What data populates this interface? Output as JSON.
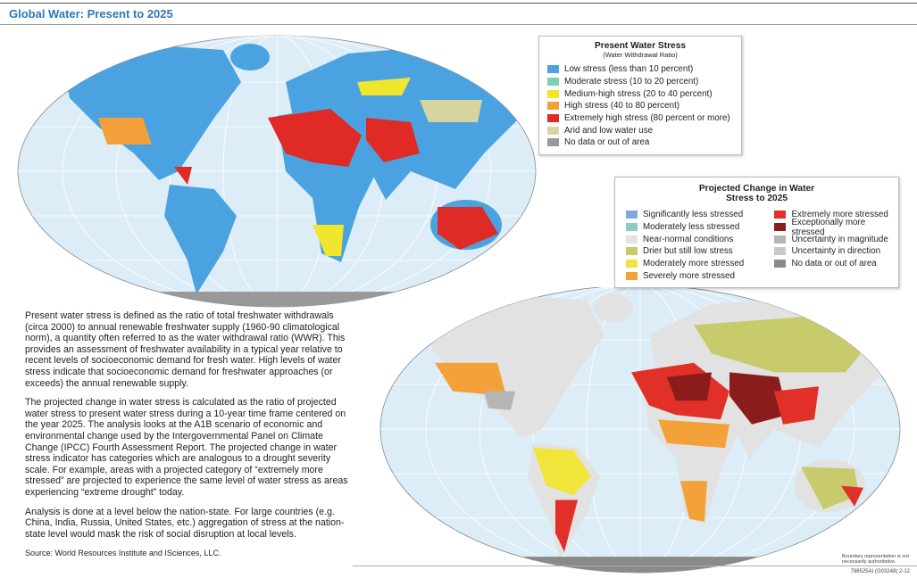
{
  "header": {
    "title": "Global Water: Present to 2025"
  },
  "legend_present": {
    "title": "Present Water Stress",
    "subtitle": "(Water Withdrawal Ratio)",
    "items": [
      {
        "label": "Low stress (less than 10 percent)",
        "color": "#4aa3e0"
      },
      {
        "label": "Moderate stress (10 to 20 percent)",
        "color": "#7fcfb3"
      },
      {
        "label": "Medium-high stress (20 to 40 percent)",
        "color": "#f0e62e"
      },
      {
        "label": "High stress (40 to 80 percent)",
        "color": "#f3a03a"
      },
      {
        "label": "Extremely high stress (80 percent or more)",
        "color": "#e02a25"
      },
      {
        "label": "Arid and low water use",
        "color": "#d8d4a0"
      },
      {
        "label": "No data or out of area",
        "color": "#999999"
      }
    ]
  },
  "legend_projected": {
    "title": "Projected Change in Water Stress to 2025",
    "items": [
      {
        "label": "Significantly less stressed",
        "color": "#7ea9d9"
      },
      {
        "label": "Moderately less stressed",
        "color": "#8fcdc2"
      },
      {
        "label": "Near-normal conditions",
        "color": "#e2e2e2"
      },
      {
        "label": "Drier but still low stress",
        "color": "#c8cb6c"
      },
      {
        "label": "Moderately more stressed",
        "color": "#f1e53c"
      },
      {
        "label": "Severely more stressed",
        "color": "#f3a23a"
      },
      {
        "label": "Extremely more stressed",
        "color": "#e03028"
      },
      {
        "label": "Exceptionally more stressed",
        "color": "#8b1c1c"
      },
      {
        "label": "Uncertainty in magnitude",
        "color": "#b5b5b5"
      },
      {
        "label": "Uncertainty in direction",
        "color": "#c9c9c9"
      },
      {
        "label": "No data or out of area",
        "color": "#8a8a8a"
      }
    ]
  },
  "body": {
    "paragraphs": [
      "Present water stress is defined as the ratio of total freshwater withdrawals (circa 2000) to annual renewable freshwater supply (1960-90 climatological norm), a quantity often referred to as the water withdrawal ratio (WWR). This provides an assessment of freshwater availability in a typical year relative to recent levels of socioeconomic demand for fresh water. High levels of water stress indicate that socioeconomic demand for freshwater approaches (or exceeds) the annual renewable supply.",
      "The projected change in water stress is calculated as the ratio of projected water stress to present water stress during a 10-year time frame centered on the year 2025. The analysis looks at the A1B scenario of economic and environmental change used by the Intergovernmental Panel on Climate Change (IPCC) Fourth Assessment Report. The projected change in water stress indicator has categories which are analogous to a drought severity scale. For example, areas with a projected category of “extremely more stressed” are projected to experience the same level of water stress as areas experiencing “extreme drought” today.",
      "Analysis is done at a level below the nation-state. For large countries (e.g. China, India, Russia, United States, etc.) aggregation of stress at the nation-state level would mask the risk of social disruption at local levels."
    ],
    "source": "Source: World Resources Institute and ISciences, LLC."
  },
  "footer": {
    "boundary_note": "Boundary representation is not necessarily authoritative.",
    "code": "798525AI (G03248) 2-12"
  }
}
